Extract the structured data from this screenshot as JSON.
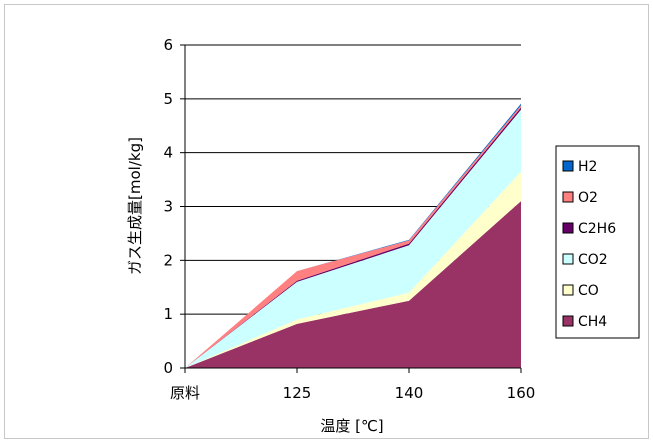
{
  "chart_data": {
    "type": "area",
    "stacked": true,
    "categories": [
      "原料",
      "125",
      "140",
      "160"
    ],
    "xlabel": "温度 [℃]",
    "ylabel": "ガス生成量[mol/kg]",
    "ylim": [
      0,
      6
    ],
    "yticks": [
      0,
      1,
      2,
      3,
      4,
      5,
      6
    ],
    "grid": true,
    "legend_position": "right",
    "series": [
      {
        "name": "CH4",
        "color": "#993366",
        "values": [
          0,
          0.82,
          1.25,
          3.1
        ]
      },
      {
        "name": "CO",
        "color": "#ffffcc",
        "values": [
          0,
          0.08,
          0.15,
          0.55
        ]
      },
      {
        "name": "CO2",
        "color": "#ccffff",
        "values": [
          0,
          0.7,
          0.88,
          1.15
        ]
      },
      {
        "name": "C2H6",
        "color": "#660066",
        "values": [
          0,
          0.02,
          0.03,
          0.04
        ]
      },
      {
        "name": "O2",
        "color": "#ff8080",
        "values": [
          0,
          0.18,
          0.06,
          0.04
        ]
      },
      {
        "name": "H2",
        "color": "#0066cc",
        "values": [
          0,
          0.0,
          0.01,
          0.03
        ]
      }
    ],
    "legend_order": [
      "H2",
      "O2",
      "C2H6",
      "CO2",
      "CO",
      "CH4"
    ]
  }
}
